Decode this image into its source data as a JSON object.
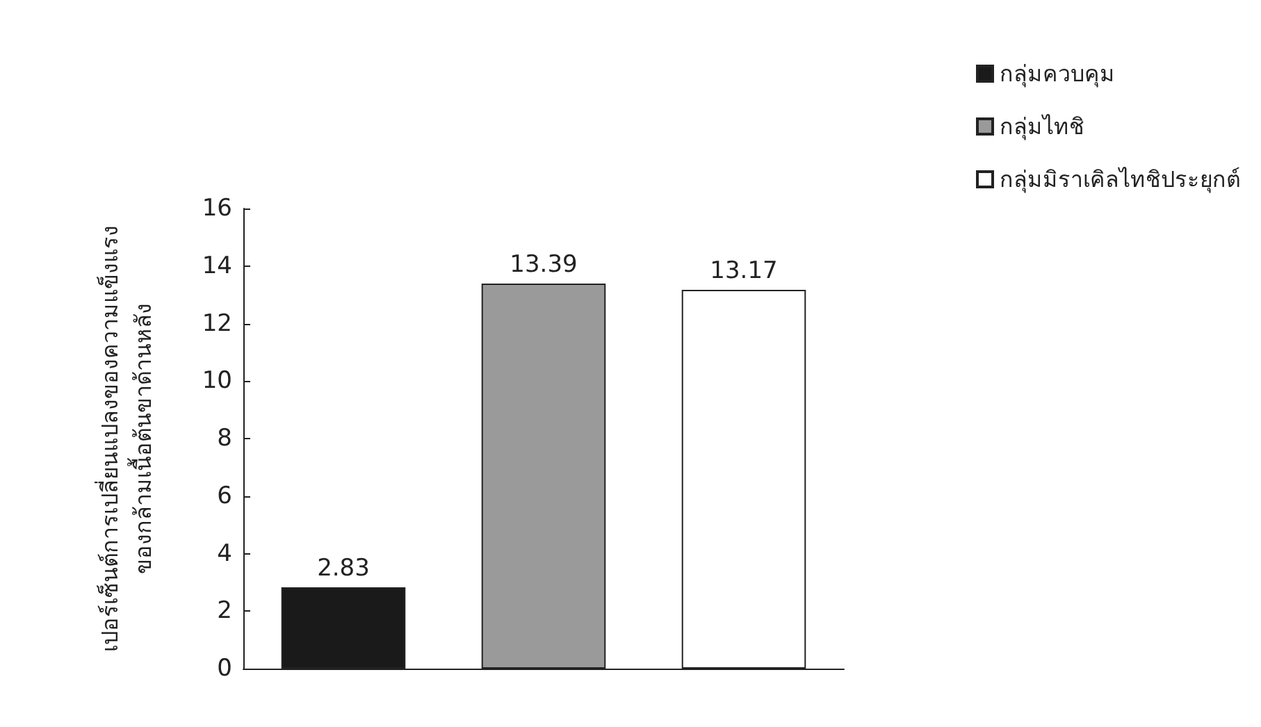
{
  "chart_data": {
    "type": "bar",
    "ylabel": "เปอร์เซ็นต์การเปลี่ยนแปลงของความแข็งแรง\nของกล้ามเนื้อต้นขาด้านหลัง",
    "categories": [
      null,
      null,
      null
    ],
    "series": [
      {
        "name": "กลุ่มควบคุม",
        "color": "#1a1a1a",
        "values": [
          2.83,
          null,
          null
        ]
      },
      {
        "name": "กลุ่มไทชิ",
        "color": "#9a9a9a",
        "values": [
          null,
          13.39,
          null
        ]
      },
      {
        "name": "กลุ่มมิราเคิลไทชิประยุกต์",
        "color": "#ffffff",
        "values": [
          null,
          null,
          13.17
        ]
      }
    ],
    "ylim": [
      0,
      16
    ],
    "yticks": [
      0,
      2,
      4,
      6,
      8,
      10,
      12,
      14,
      16
    ],
    "data_labels": true,
    "grid": false,
    "legend": "top right"
  }
}
